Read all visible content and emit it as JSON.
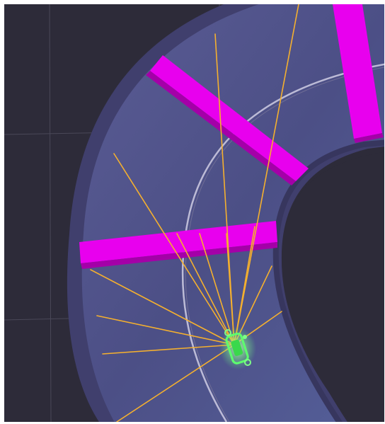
{
  "scene": {
    "type": "top-down race track with ray sensors",
    "colors": {
      "background": "#2d2b39",
      "grid": "#4a4858",
      "track_surface": "#4b4d83",
      "track_wall": "#3f3e6c",
      "lane_line": "#c9c6df",
      "checkpoint": "#e800ee",
      "ray": "#f5b02e",
      "car": "#5dff6e"
    },
    "ray_count": 13,
    "checkpoint_count": 3
  }
}
